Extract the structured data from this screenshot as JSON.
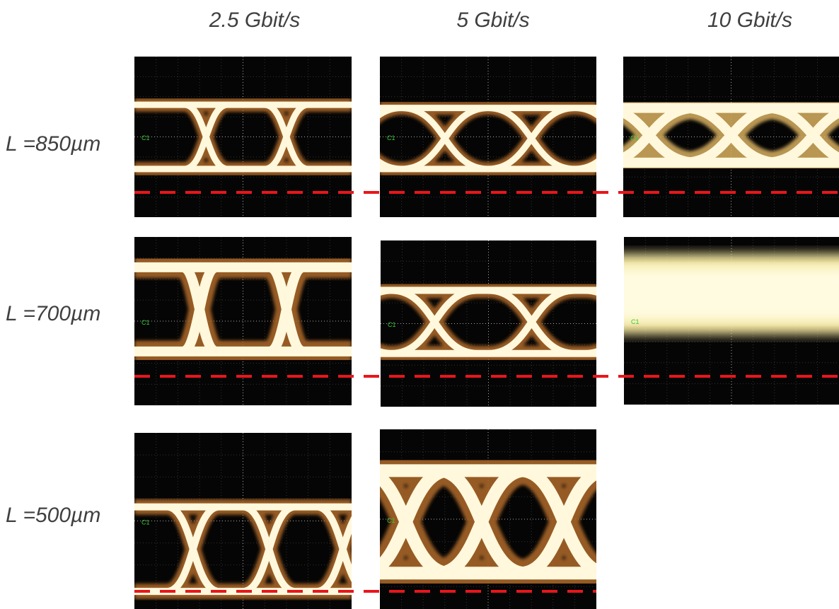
{
  "column_headers": [
    "2.5 Gbit/s",
    "5 Gbit/s",
    "10 Gbit/s"
  ],
  "row_labels": [
    "L =850µm",
    "L =700µm",
    "L =500µm"
  ],
  "channel_label": "C1"
}
